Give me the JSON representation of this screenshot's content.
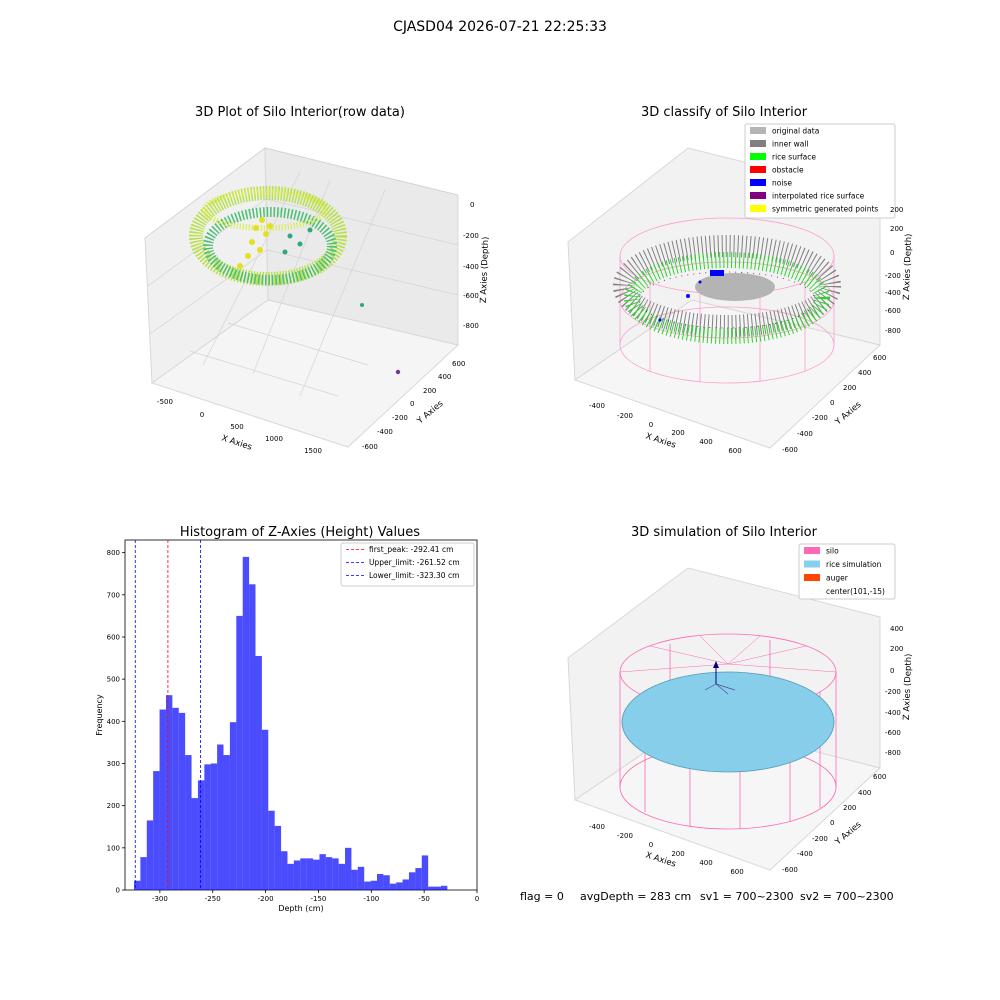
{
  "figure": {
    "suptitle": "CJASD04 2026-07-21 22:25:33",
    "footer": {
      "flag": "flag = 0",
      "avg_depth": "avgDepth = 283 cm",
      "sv1": "sv1 = 700~2300",
      "sv2": "sv2 = 700~2300"
    }
  },
  "panels": {
    "raw": {
      "title": "3D Plot of Silo Interior(row data)",
      "xlabel": "X Axies",
      "ylabel": "Y Axies",
      "zlabel": "Z Axies (Depth)",
      "xticks": [
        "-500",
        "0",
        "500",
        "1000",
        "1500"
      ],
      "yticks": [
        "600",
        "400",
        "200",
        "0",
        "-200",
        "-400",
        "-600"
      ],
      "zticks": [
        "0",
        "-200",
        "-400",
        "-600",
        "-800"
      ]
    },
    "classify": {
      "title": "3D classify of Silo Interior",
      "xlabel": "X Axies",
      "ylabel": "Y Axies",
      "zlabel": "Z Axies (Depth)",
      "xticks": [
        "-400",
        "-200",
        "0",
        "200",
        "400",
        "600"
      ],
      "yticks": [
        "600",
        "400",
        "200",
        "0",
        "-200",
        "-400",
        "-600"
      ],
      "zticks": [
        "200",
        "0",
        "-200",
        "-400",
        "-600",
        "-800"
      ],
      "zticks_top": [
        "400",
        "200"
      ],
      "legend": [
        {
          "label": "original data",
          "color": "#b4b4b4"
        },
        {
          "label": "inner wall",
          "color": "#808080"
        },
        {
          "label": "rice surface",
          "color": "#00ff00"
        },
        {
          "label": "obstacle",
          "color": "#ff0000"
        },
        {
          "label": "noise",
          "color": "#0000ff"
        },
        {
          "label": "interpolated rice surface",
          "color": "#800080"
        },
        {
          "label": "symmetric generated points",
          "color": "#ffff00"
        }
      ]
    },
    "simulation": {
      "title": "3D simulation of Silo Interior",
      "xlabel": "X Axies",
      "ylabel": "Y Axies",
      "zlabel": "Z Axies (Depth)",
      "xticks": [
        "-400",
        "-200",
        "0",
        "200",
        "400",
        "600"
      ],
      "yticks": [
        "600",
        "400",
        "200",
        "0",
        "-200",
        "-400",
        "-600"
      ],
      "zticks": [
        "400",
        "200",
        "0",
        "-200",
        "-400",
        "-600",
        "-800"
      ],
      "legend": [
        {
          "label": "silo",
          "color": "#ff69b4"
        },
        {
          "label": "rice simulation",
          "color": "#87ceeb"
        },
        {
          "label": "auger",
          "color": "#ff4500"
        },
        {
          "label": "center(101,-15)",
          "color": ""
        }
      ]
    }
  },
  "chart_data": [
    {
      "type": "bar",
      "title": "Histogram of Z-Axies (Height) Values",
      "xlabel": "Depth (cm)",
      "ylabel": "Frequency",
      "xlim": [
        -333,
        0
      ],
      "ylim": [
        0,
        830
      ],
      "xticks": [
        -300,
        -250,
        -200,
        -150,
        -100,
        -50,
        0
      ],
      "yticks": [
        0,
        100,
        200,
        300,
        400,
        500,
        600,
        700,
        800
      ],
      "bin_start": -324.5,
      "bin_width": 6.05,
      "values": [
        22,
        78,
        165,
        282,
        428,
        462,
        432,
        420,
        320,
        218,
        260,
        298,
        300,
        345,
        320,
        398,
        650,
        790,
        725,
        555,
        380,
        188,
        152,
        92,
        62,
        70,
        75,
        75,
        72,
        85,
        78,
        75,
        62,
        100,
        48,
        55,
        20,
        22,
        38,
        35,
        15,
        18,
        25,
        42,
        52,
        82,
        8,
        8,
        10
      ],
      "bar_color": "#0000ff",
      "bar_alpha": 0.7,
      "grid": false,
      "legend_position": "top-right",
      "lines": [
        {
          "label": "first_peak: -292.41 cm",
          "x": -292.41,
          "color": "#ff0000",
          "style": "dashed"
        },
        {
          "label": "Upper_limit: -261.52 cm",
          "x": -261.52,
          "color": "#0000ff",
          "style": "dashed"
        },
        {
          "label": "Lower_limit: -323.30 cm",
          "x": -323.3,
          "color": "#0000ff",
          "style": "dashed"
        }
      ]
    }
  ]
}
